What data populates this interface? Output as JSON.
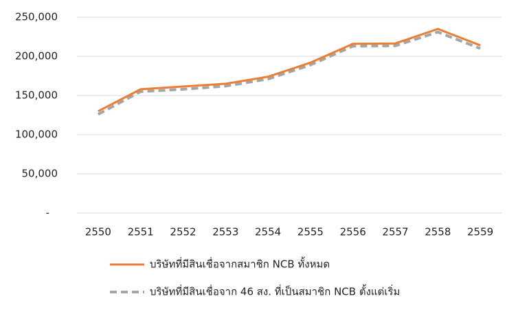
{
  "chart_data": {
    "type": "line",
    "categories": [
      "2550",
      "2551",
      "2552",
      "2553",
      "2554",
      "2555",
      "2556",
      "2557",
      "2558",
      "2559"
    ],
    "series": [
      {
        "name": "บริษัทที่มีสินเชื่อจากสมาชิก NCB ทั้งหมด",
        "color": "#ed7d31",
        "dashed": false,
        "values": [
          130000,
          158000,
          161500,
          165000,
          174000,
          192000,
          216000,
          216500,
          235000,
          214000
        ]
      },
      {
        "name": "บริษัทที่มีสินเชื่อจาก 46 สง. ที่เป็นสมาชิก NCB ตั้งแต่เริ่ม",
        "color": "#a5a5a5",
        "dashed": true,
        "values": [
          126000,
          155000,
          158000,
          162000,
          171000,
          189000,
          213000,
          213500,
          231000,
          210000
        ]
      }
    ],
    "ylim": [
      0,
      250000
    ],
    "yticks": [
      {
        "value": 0,
        "label": "-"
      },
      {
        "value": 50000,
        "label": "50,000"
      },
      {
        "value": 100000,
        "label": "100,000"
      },
      {
        "value": 150000,
        "label": "150,000"
      },
      {
        "value": 200000,
        "label": "200,000"
      },
      {
        "value": 250000,
        "label": "250,000"
      }
    ],
    "grid": true
  }
}
